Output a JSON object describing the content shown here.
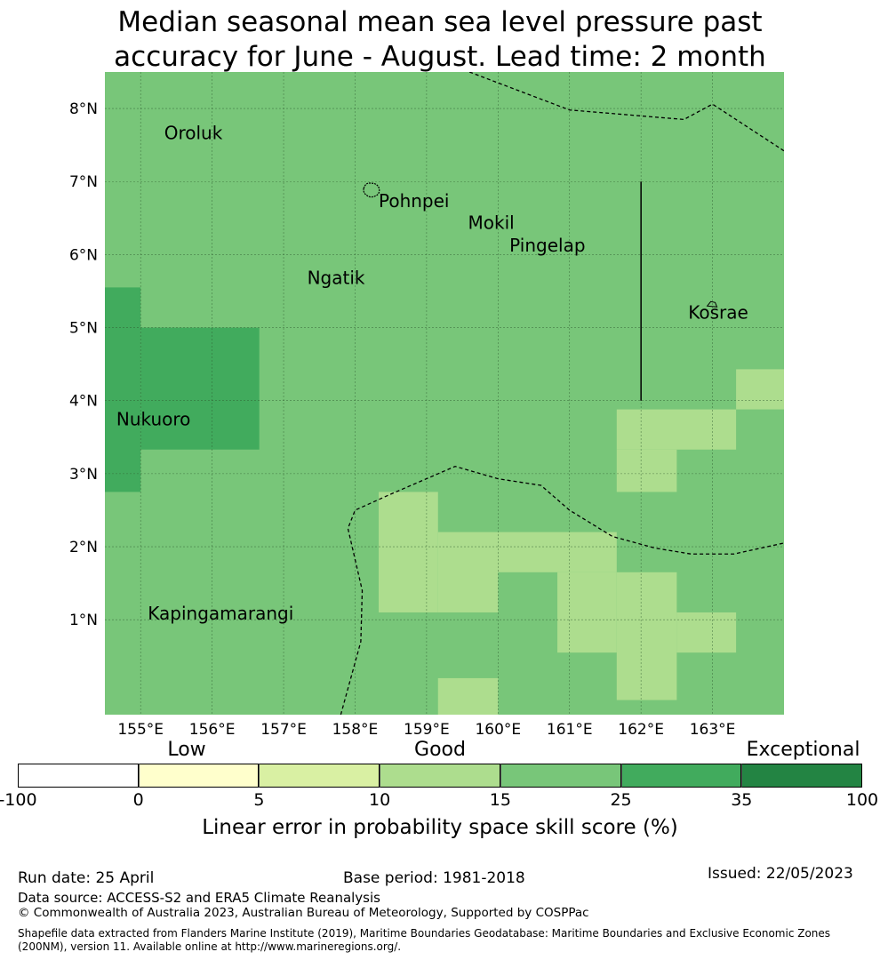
{
  "title": {
    "line1": "Median seasonal mean sea level pressure past",
    "line2": "accuracy for June - August. Lead time: 2 month"
  },
  "map": {
    "lon_range": [
      154.5,
      164.0
    ],
    "lat_range": [
      -0.3,
      8.5
    ],
    "lon_ticks": [
      {
        "value": 155,
        "label": "155°E"
      },
      {
        "value": 156,
        "label": "156°E"
      },
      {
        "value": 157,
        "label": "157°E"
      },
      {
        "value": 158,
        "label": "158°E"
      },
      {
        "value": 159,
        "label": "159°E"
      },
      {
        "value": 160,
        "label": "160°E"
      },
      {
        "value": 161,
        "label": "161°E"
      },
      {
        "value": 162,
        "label": "162°E"
      },
      {
        "value": 163,
        "label": "163°E"
      }
    ],
    "lat_ticks": [
      {
        "value": 1,
        "label": "1°N"
      },
      {
        "value": 2,
        "label": "2°N"
      },
      {
        "value": 3,
        "label": "3°N"
      },
      {
        "value": 4,
        "label": "4°N"
      },
      {
        "value": 5,
        "label": "5°N"
      },
      {
        "value": 6,
        "label": "6°N"
      },
      {
        "value": 7,
        "label": "7°N"
      },
      {
        "value": 8,
        "label": "8°N"
      }
    ],
    "background_color": "#78c679",
    "skill_cells": [
      {
        "lon": [
          154.5,
          155.0
        ],
        "lat": [
          2.75,
          5.55
        ],
        "color": "#41ab5d"
      },
      {
        "lon": [
          155.0,
          156.66
        ],
        "lat": [
          3.33,
          5.0
        ],
        "color": "#41ab5d"
      },
      {
        "lon": [
          158.33,
          159.16
        ],
        "lat": [
          1.1,
          2.75
        ],
        "color": "#addd8e"
      },
      {
        "lon": [
          159.16,
          160.0
        ],
        "lat": [
          1.1,
          2.2
        ],
        "color": "#addd8e"
      },
      {
        "lon": [
          160.0,
          161.66
        ],
        "lat": [
          1.65,
          2.2
        ],
        "color": "#addd8e"
      },
      {
        "lon": [
          160.83,
          161.66
        ],
        "lat": [
          0.55,
          1.65
        ],
        "color": "#addd8e"
      },
      {
        "lon": [
          161.66,
          162.5
        ],
        "lat": [
          -0.1,
          1.65
        ],
        "color": "#addd8e"
      },
      {
        "lon": [
          162.5,
          163.33
        ],
        "lat": [
          0.55,
          1.1
        ],
        "color": "#addd8e"
      },
      {
        "lon": [
          161.66,
          163.33
        ],
        "lat": [
          3.33,
          3.88
        ],
        "color": "#addd8e"
      },
      {
        "lon": [
          161.66,
          162.5
        ],
        "lat": [
          2.75,
          3.33
        ],
        "color": "#addd8e"
      },
      {
        "lon": [
          163.33,
          164.0
        ],
        "lat": [
          3.88,
          4.43
        ],
        "color": "#addd8e"
      },
      {
        "lon": [
          159.16,
          160.0
        ],
        "lat": [
          -0.3,
          0.2
        ],
        "color": "#addd8e"
      }
    ],
    "places": [
      {
        "name": "Oroluk",
        "lon": 155.33,
        "lat": 7.58
      },
      {
        "name": "Pohnpei",
        "lon": 158.33,
        "lat": 6.65
      },
      {
        "name": "Mokil",
        "lon": 159.58,
        "lat": 6.35
      },
      {
        "name": "Pingelap",
        "lon": 160.16,
        "lat": 6.04
      },
      {
        "name": "Ngatik",
        "lon": 157.33,
        "lat": 5.6
      },
      {
        "name": "Kosrae",
        "lon": 162.66,
        "lat": 5.12
      },
      {
        "name": "Nukuoro",
        "lon": 154.66,
        "lat": 3.66
      },
      {
        "name": "Kapingamarangi",
        "lon": 155.1,
        "lat": 1.0
      }
    ],
    "eez_boundaries": [
      [
        [
          159.6,
          8.5
        ],
        [
          161.0,
          7.98
        ],
        [
          162.6,
          7.85
        ],
        [
          163.0,
          8.06
        ],
        [
          164.0,
          7.42
        ]
      ],
      [
        [
          157.8,
          -0.3
        ],
        [
          158.08,
          0.7
        ],
        [
          158.1,
          1.4
        ],
        [
          157.9,
          2.25
        ],
        [
          158.0,
          2.5
        ],
        [
          158.5,
          2.72
        ],
        [
          159.4,
          3.1
        ],
        [
          160.0,
          2.93
        ],
        [
          160.6,
          2.84
        ],
        [
          161.0,
          2.5
        ],
        [
          161.6,
          2.14
        ],
        [
          162.2,
          1.98
        ],
        [
          162.7,
          1.9
        ],
        [
          163.3,
          1.9
        ],
        [
          164.0,
          2.05
        ]
      ]
    ],
    "meridian_line": {
      "lon": 162.0,
      "lat": [
        4.0,
        7.0
      ]
    }
  },
  "colorbar": {
    "categories": [
      {
        "label": "Low",
        "position": 0.2
      },
      {
        "label": "Good",
        "position": 0.5
      },
      {
        "label": "Exceptional",
        "position": 0.93
      }
    ],
    "segments": [
      "#ffffff",
      "#ffffcc",
      "#d9f0a3",
      "#addd8e",
      "#78c679",
      "#41ab5d",
      "#238443"
    ],
    "ticks": [
      "-100",
      "0",
      "5",
      "10",
      "15",
      "25",
      "35",
      "100"
    ],
    "label": "Linear error in probability space skill score (%)"
  },
  "footer": {
    "run_date": "Run date: 25 April",
    "base_period": "Base period: 1981-2018",
    "issued": "Issued: 22/05/2023",
    "data_source": "Data source: ACCESS-S2 and ERA5 Climate Reanalysis",
    "copyright": "© Commonwealth of Australia 2023, Australian Bureau of Meteorology, Supported by COSPPac",
    "shapefile_note": "Shapefile data extracted from Flanders Marine Institute (2019), Maritime Boundaries Geodatabase: Maritime Boundaries and Exclusive Economic Zones (200NM), version 11. Available online at http://www.marineregions.org/."
  }
}
